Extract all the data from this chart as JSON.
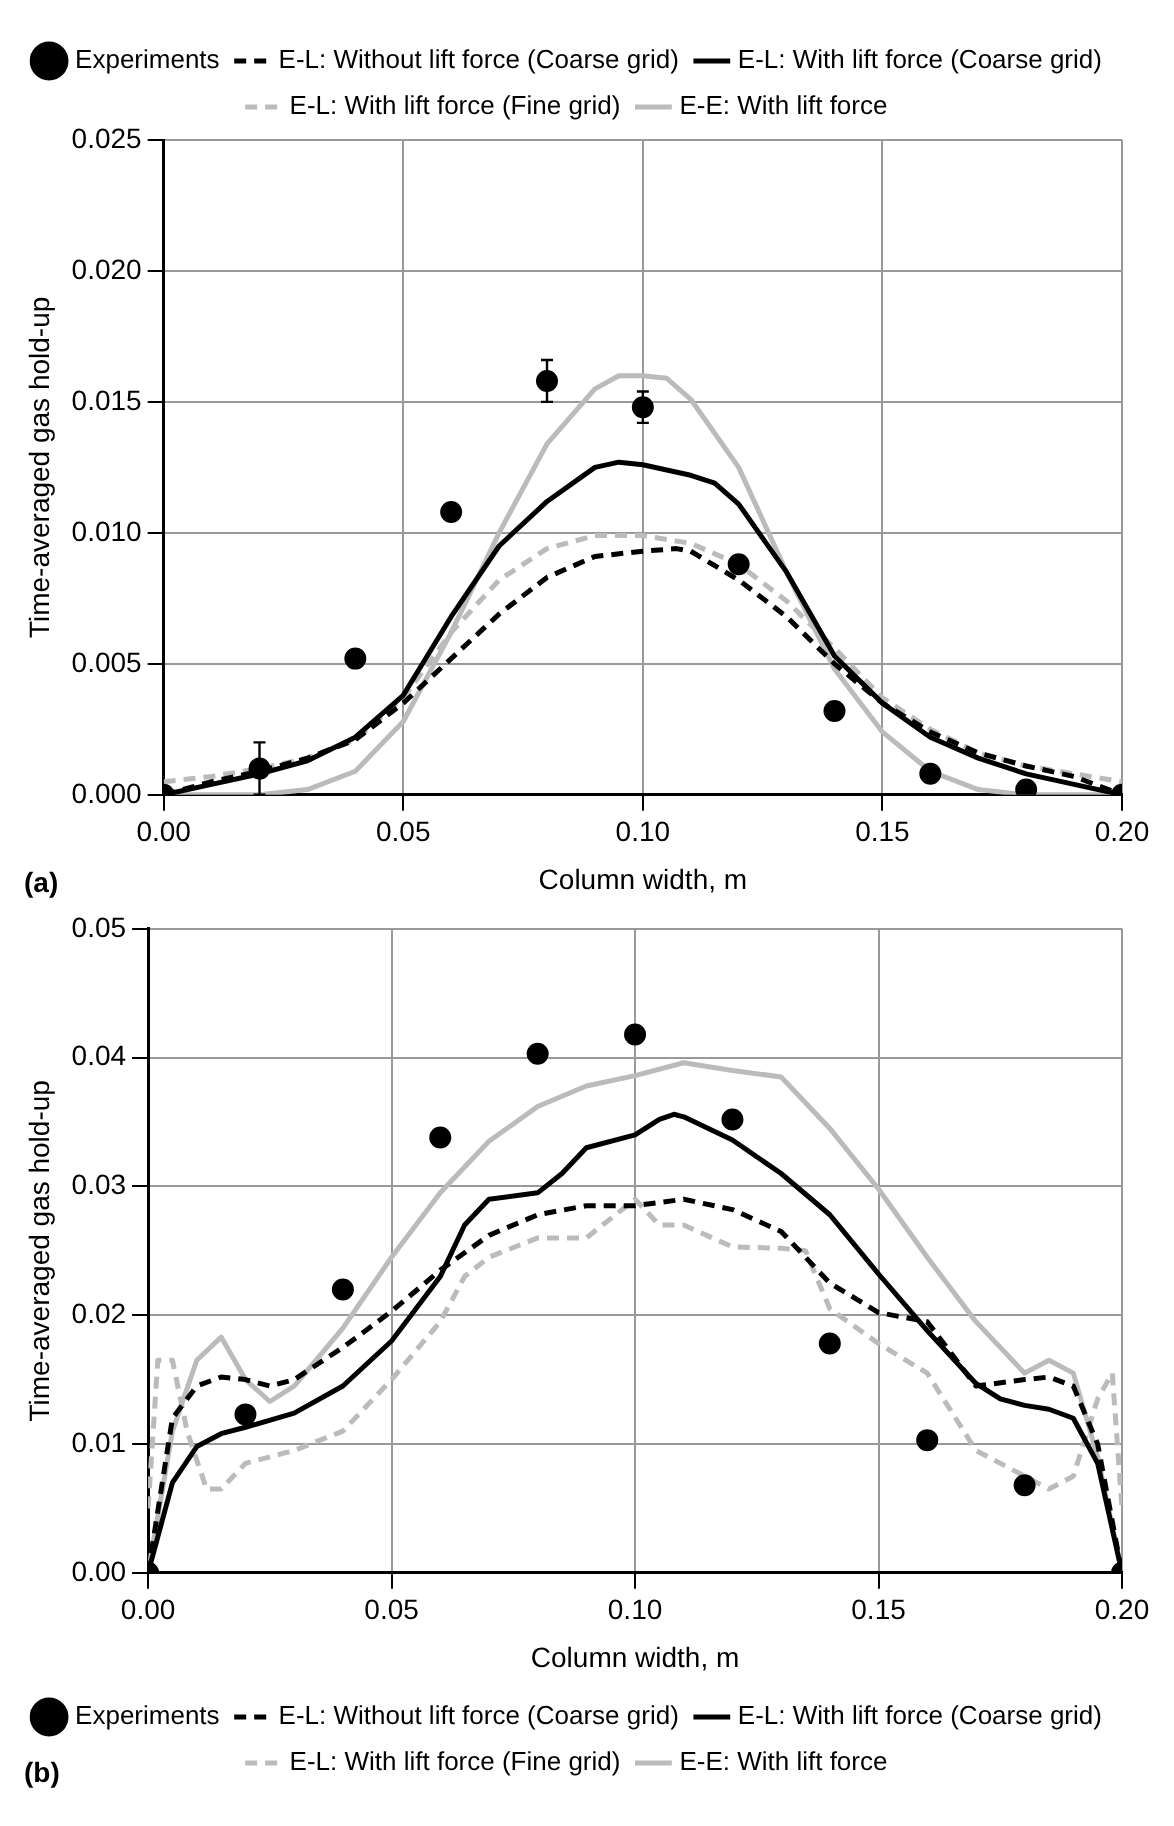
{
  "chart_data": [
    {
      "type": "line",
      "xlabel": "Column width, m",
      "ylabel": "Time-averaged gas hold-up",
      "annotations": [
        "(a)"
      ],
      "xlim": [
        0,
        0.2
      ],
      "ylim": [
        0,
        0.025
      ],
      "xticks": [
        {
          "value": 0,
          "label": "0.00"
        },
        {
          "value": 0.05,
          "label": "0.05"
        },
        {
          "value": 0.1,
          "label": "0.10"
        },
        {
          "value": 0.15,
          "label": "0.15"
        },
        {
          "value": 0.2,
          "label": "0.20"
        }
      ],
      "yticks": [
        {
          "value": 0,
          "label": "0.000"
        },
        {
          "value": 0.005,
          "label": "0.005"
        },
        {
          "value": 0.01,
          "label": "0.010"
        },
        {
          "value": 0.015,
          "label": "0.015"
        },
        {
          "value": 0.02,
          "label": "0.020"
        },
        {
          "value": 0.025,
          "label": "0.025"
        }
      ],
      "grid": true,
      "legend": "top",
      "series": [
        {
          "name": "Experiments",
          "type": "scatter",
          "marker": "circle",
          "color": "#000000",
          "x": [
            0,
            0.02,
            0.04,
            0.06,
            0.08,
            0.1,
            0.12,
            0.14,
            0.16,
            0.18,
            0.2
          ],
          "values": [
            0,
            0.001,
            0.0052,
            0.0108,
            0.0158,
            0.0148,
            0.0088,
            0.0032,
            0.0008,
            0.0002,
            0
          ],
          "errors": [
            null,
            0.001,
            null,
            null,
            0.0008,
            0.0006,
            null,
            null,
            null,
            null,
            null
          ]
        },
        {
          "name": "E-L: Without lift force (Coarse grid)",
          "type": "line",
          "line_style": "dashed",
          "color": "#000000",
          "x": [
            0,
            0.01,
            0.02,
            0.03,
            0.04,
            0.05,
            0.06,
            0.07,
            0.08,
            0.09,
            0.1,
            0.107,
            0.11,
            0.12,
            0.13,
            0.14,
            0.15,
            0.16,
            0.17,
            0.18,
            0.19,
            0.2
          ],
          "values": [
            0,
            0.0005,
            0.0009,
            0.0014,
            0.0021,
            0.0035,
            0.0052,
            0.0069,
            0.0083,
            0.0091,
            0.0093,
            0.0094,
            0.0093,
            0.0082,
            0.0068,
            0.005,
            0.0035,
            0.0024,
            0.0016,
            0.0011,
            0.0007,
            0
          ]
        },
        {
          "name": "E-L: With lift force (Coarse grid)",
          "type": "line",
          "line_style": "solid",
          "color": "#000000",
          "x": [
            0,
            0.01,
            0.02,
            0.03,
            0.04,
            0.05,
            0.06,
            0.07,
            0.08,
            0.09,
            0.095,
            0.1,
            0.11,
            0.115,
            0.12,
            0.13,
            0.14,
            0.15,
            0.16,
            0.17,
            0.18,
            0.19,
            0.2
          ],
          "values": [
            0,
            0.0004,
            0.0008,
            0.0013,
            0.0022,
            0.0038,
            0.0068,
            0.0095,
            0.0112,
            0.0125,
            0.0127,
            0.0126,
            0.0122,
            0.0119,
            0.0111,
            0.0085,
            0.0053,
            0.0035,
            0.0022,
            0.0014,
            0.0008,
            0.0004,
            0
          ]
        },
        {
          "name": "E-L: With lift force (Fine grid)",
          "type": "line",
          "line_style": "dashed",
          "color": "#bbbbbb",
          "x": [
            0,
            0.01,
            0.02,
            0.03,
            0.04,
            0.05,
            0.06,
            0.07,
            0.08,
            0.09,
            0.1,
            0.11,
            0.12,
            0.13,
            0.14,
            0.15,
            0.16,
            0.17,
            0.18,
            0.19,
            0.2
          ],
          "values": [
            0.0005,
            0.0007,
            0.001,
            0.0014,
            0.0021,
            0.0037,
            0.0062,
            0.0082,
            0.0094,
            0.0099,
            0.0099,
            0.0096,
            0.0088,
            0.0074,
            0.0056,
            0.0037,
            0.0025,
            0.0016,
            0.0011,
            0.0008,
            0.0005
          ]
        },
        {
          "name": "E-E: With lift force",
          "type": "line",
          "line_style": "solid",
          "color": "#bbbbbb",
          "x": [
            0,
            0.02,
            0.03,
            0.04,
            0.05,
            0.06,
            0.07,
            0.08,
            0.09,
            0.095,
            0.1,
            0.105,
            0.11,
            0.12,
            0.13,
            0.14,
            0.15,
            0.16,
            0.17,
            0.18,
            0.2
          ],
          "values": [
            0,
            0,
            0.0002,
            0.0009,
            0.0028,
            0.0062,
            0.01,
            0.0134,
            0.0155,
            0.016,
            0.016,
            0.0159,
            0.0151,
            0.0125,
            0.0085,
            0.0048,
            0.0024,
            0.0009,
            0.0002,
            0,
            0
          ]
        }
      ]
    },
    {
      "type": "line",
      "xlabel": "Column width, m",
      "ylabel": "Time-averaged gas hold-up",
      "annotations": [
        "(b)"
      ],
      "xlim": [
        0,
        0.2
      ],
      "ylim": [
        0,
        0.05
      ],
      "xticks": [
        {
          "value": 0,
          "label": "0.00"
        },
        {
          "value": 0.05,
          "label": "0.05"
        },
        {
          "value": 0.1,
          "label": "0.10"
        },
        {
          "value": 0.15,
          "label": "0.15"
        },
        {
          "value": 0.2,
          "label": "0.20"
        }
      ],
      "yticks": [
        {
          "value": 0,
          "label": "0.00"
        },
        {
          "value": 0.01,
          "label": "0.01"
        },
        {
          "value": 0.02,
          "label": "0.02"
        },
        {
          "value": 0.03,
          "label": "0.03"
        },
        {
          "value": 0.04,
          "label": "0.04"
        },
        {
          "value": 0.05,
          "label": "0.05"
        }
      ],
      "grid": true,
      "legend": "bottom",
      "series": [
        {
          "name": "Experiments",
          "type": "scatter",
          "marker": "circle",
          "color": "#000000",
          "x": [
            0,
            0.02,
            0.04,
            0.06,
            0.08,
            0.1,
            0.12,
            0.14,
            0.16,
            0.18,
            0.2
          ],
          "values": [
            0,
            0.0123,
            0.022,
            0.0338,
            0.0403,
            0.0418,
            0.0352,
            0.0178,
            0.0103,
            0.0068,
            0
          ]
        },
        {
          "name": "E-L: Without lift force (Coarse grid)",
          "type": "line",
          "line_style": "dashed",
          "color": "#000000",
          "x": [
            0,
            0.005,
            0.01,
            0.015,
            0.02,
            0.025,
            0.03,
            0.04,
            0.05,
            0.06,
            0.07,
            0.08,
            0.09,
            0.1,
            0.11,
            0.12,
            0.13,
            0.14,
            0.15,
            0.16,
            0.17,
            0.18,
            0.185,
            0.19,
            0.195,
            0.2
          ],
          "values": [
            0,
            0.012,
            0.0145,
            0.0152,
            0.015,
            0.0145,
            0.015,
            0.0175,
            0.0203,
            0.0235,
            0.0262,
            0.0278,
            0.0285,
            0.0285,
            0.029,
            0.0282,
            0.0265,
            0.0225,
            0.0202,
            0.0195,
            0.0145,
            0.015,
            0.0152,
            0.0145,
            0.01,
            0
          ]
        },
        {
          "name": "E-L: With lift force (Coarse grid)",
          "type": "line",
          "line_style": "solid",
          "color": "#000000",
          "x": [
            0,
            0.005,
            0.01,
            0.015,
            0.02,
            0.03,
            0.04,
            0.05,
            0.06,
            0.065,
            0.07,
            0.08,
            0.085,
            0.09,
            0.1,
            0.105,
            0.108,
            0.11,
            0.12,
            0.13,
            0.14,
            0.15,
            0.16,
            0.17,
            0.175,
            0.18,
            0.185,
            0.19,
            0.195,
            0.2
          ],
          "values": [
            0,
            0.007,
            0.0098,
            0.0108,
            0.0113,
            0.0124,
            0.0145,
            0.018,
            0.023,
            0.027,
            0.029,
            0.0295,
            0.031,
            0.033,
            0.034,
            0.0352,
            0.0356,
            0.0354,
            0.0336,
            0.031,
            0.0278,
            0.0232,
            0.0188,
            0.0147,
            0.0135,
            0.013,
            0.0127,
            0.012,
            0.0085,
            0
          ]
        },
        {
          "name": "E-L: With lift force (Fine grid)",
          "type": "line",
          "line_style": "dashed",
          "color": "#bbbbbb",
          "x": [
            0,
            0.002,
            0.005,
            0.008,
            0.012,
            0.015,
            0.02,
            0.03,
            0.04,
            0.05,
            0.06,
            0.065,
            0.07,
            0.08,
            0.09,
            0.095,
            0.1,
            0.105,
            0.11,
            0.12,
            0.13,
            0.135,
            0.14,
            0.15,
            0.16,
            0.165,
            0.17,
            0.18,
            0.185,
            0.19,
            0.195,
            0.198,
            0.2
          ],
          "values": [
            0.005,
            0.0165,
            0.0165,
            0.011,
            0.0065,
            0.0065,
            0.0085,
            0.0095,
            0.011,
            0.015,
            0.0195,
            0.023,
            0.0245,
            0.026,
            0.026,
            0.0275,
            0.029,
            0.027,
            0.027,
            0.0253,
            0.0252,
            0.025,
            0.0205,
            0.0178,
            0.0155,
            0.0125,
            0.0095,
            0.0075,
            0.0065,
            0.0075,
            0.0135,
            0.0155,
            0.005
          ]
        },
        {
          "name": "E-E: With lift force",
          "type": "line",
          "line_style": "solid",
          "color": "#bbbbbb",
          "x": [
            0,
            0.005,
            0.01,
            0.015,
            0.02,
            0.025,
            0.03,
            0.04,
            0.05,
            0.06,
            0.07,
            0.08,
            0.09,
            0.1,
            0.11,
            0.12,
            0.13,
            0.14,
            0.15,
            0.16,
            0.17,
            0.18,
            0.185,
            0.19,
            0.195,
            0.2
          ],
          "values": [
            0,
            0.011,
            0.0165,
            0.0183,
            0.015,
            0.0133,
            0.0145,
            0.019,
            0.0245,
            0.0295,
            0.0335,
            0.0362,
            0.0378,
            0.0386,
            0.0396,
            0.039,
            0.0385,
            0.0345,
            0.0298,
            0.0245,
            0.0195,
            0.0155,
            0.0165,
            0.0155,
            0.009,
            0
          ]
        }
      ]
    }
  ]
}
